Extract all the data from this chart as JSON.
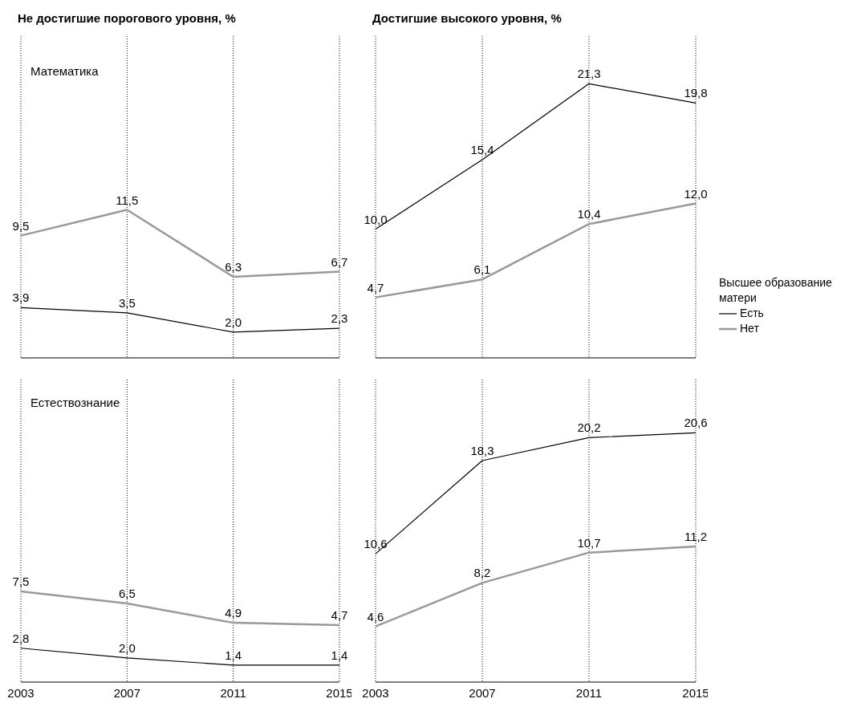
{
  "chart_data": [
    {
      "type": "line",
      "title": "Не достигшие порогового уровня, %",
      "subtitle": "Математика",
      "categories": [
        "2003",
        "2007",
        "2011",
        "2015"
      ],
      "ylim": [
        0,
        25
      ],
      "grid": "x",
      "tick_labels": false,
      "marker": "none",
      "series": [
        {
          "color": "#000000",
          "values": [
            3.9,
            3.5,
            2.0,
            2.3
          ],
          "value_labels": [
            "3,9",
            "3,5",
            "2,0",
            "2,3"
          ]
        },
        {
          "color": "#999999",
          "values": [
            9.5,
            11.5,
            6.3,
            6.7
          ],
          "value_labels": [
            "9,5",
            "11,5",
            "6,3",
            "6,7"
          ]
        }
      ]
    },
    {
      "type": "line",
      "title": "Достигшие высокого уровня, %",
      "categories": [
        "2003",
        "2007",
        "2011",
        "2015"
      ],
      "ylim": [
        0,
        25
      ],
      "grid": "x",
      "tick_labels": false,
      "marker": "none",
      "legend": "right",
      "legend_title": "Высшее образование матери",
      "series": [
        {
          "name": "Есть",
          "color": "#000000",
          "values": [
            10.0,
            15.4,
            21.3,
            19.8
          ],
          "value_labels": [
            "10,0",
            "15,4",
            "21,3",
            "19,8"
          ]
        },
        {
          "name": "Нет",
          "color": "#999999",
          "values": [
            4.7,
            6.1,
            10.4,
            12.0
          ],
          "value_labels": [
            "4,7",
            "6,1",
            "10,4",
            "12,0"
          ]
        }
      ]
    },
    {
      "type": "line",
      "subtitle": "Естествознание",
      "categories": [
        "2003",
        "2007",
        "2011",
        "2015"
      ],
      "ylim": [
        0,
        25
      ],
      "grid": "x",
      "tick_labels": "x",
      "marker": "none",
      "series": [
        {
          "color": "#000000",
          "values": [
            2.8,
            2.0,
            1.4,
            1.4
          ],
          "value_labels": [
            "2,8",
            "2,0",
            "1,4",
            "1,4"
          ]
        },
        {
          "color": "#999999",
          "values": [
            7.5,
            6.5,
            4.9,
            4.7
          ],
          "value_labels": [
            "7,5",
            "6,5",
            "4,9",
            "4,7"
          ]
        }
      ]
    },
    {
      "type": "line",
      "categories": [
        "2003",
        "2007",
        "2011",
        "2015"
      ],
      "ylim": [
        0,
        25
      ],
      "grid": "x",
      "tick_labels": "x",
      "marker": "none",
      "series": [
        {
          "color": "#000000",
          "values": [
            10.6,
            18.3,
            20.2,
            20.6
          ],
          "value_labels": [
            "10,6",
            "18,3",
            "20,2",
            "20,6"
          ]
        },
        {
          "color": "#999999",
          "values": [
            4.6,
            8.2,
            10.7,
            11.2
          ],
          "value_labels": [
            "4,6",
            "8,2",
            "10,7",
            "11,2"
          ]
        }
      ]
    }
  ]
}
